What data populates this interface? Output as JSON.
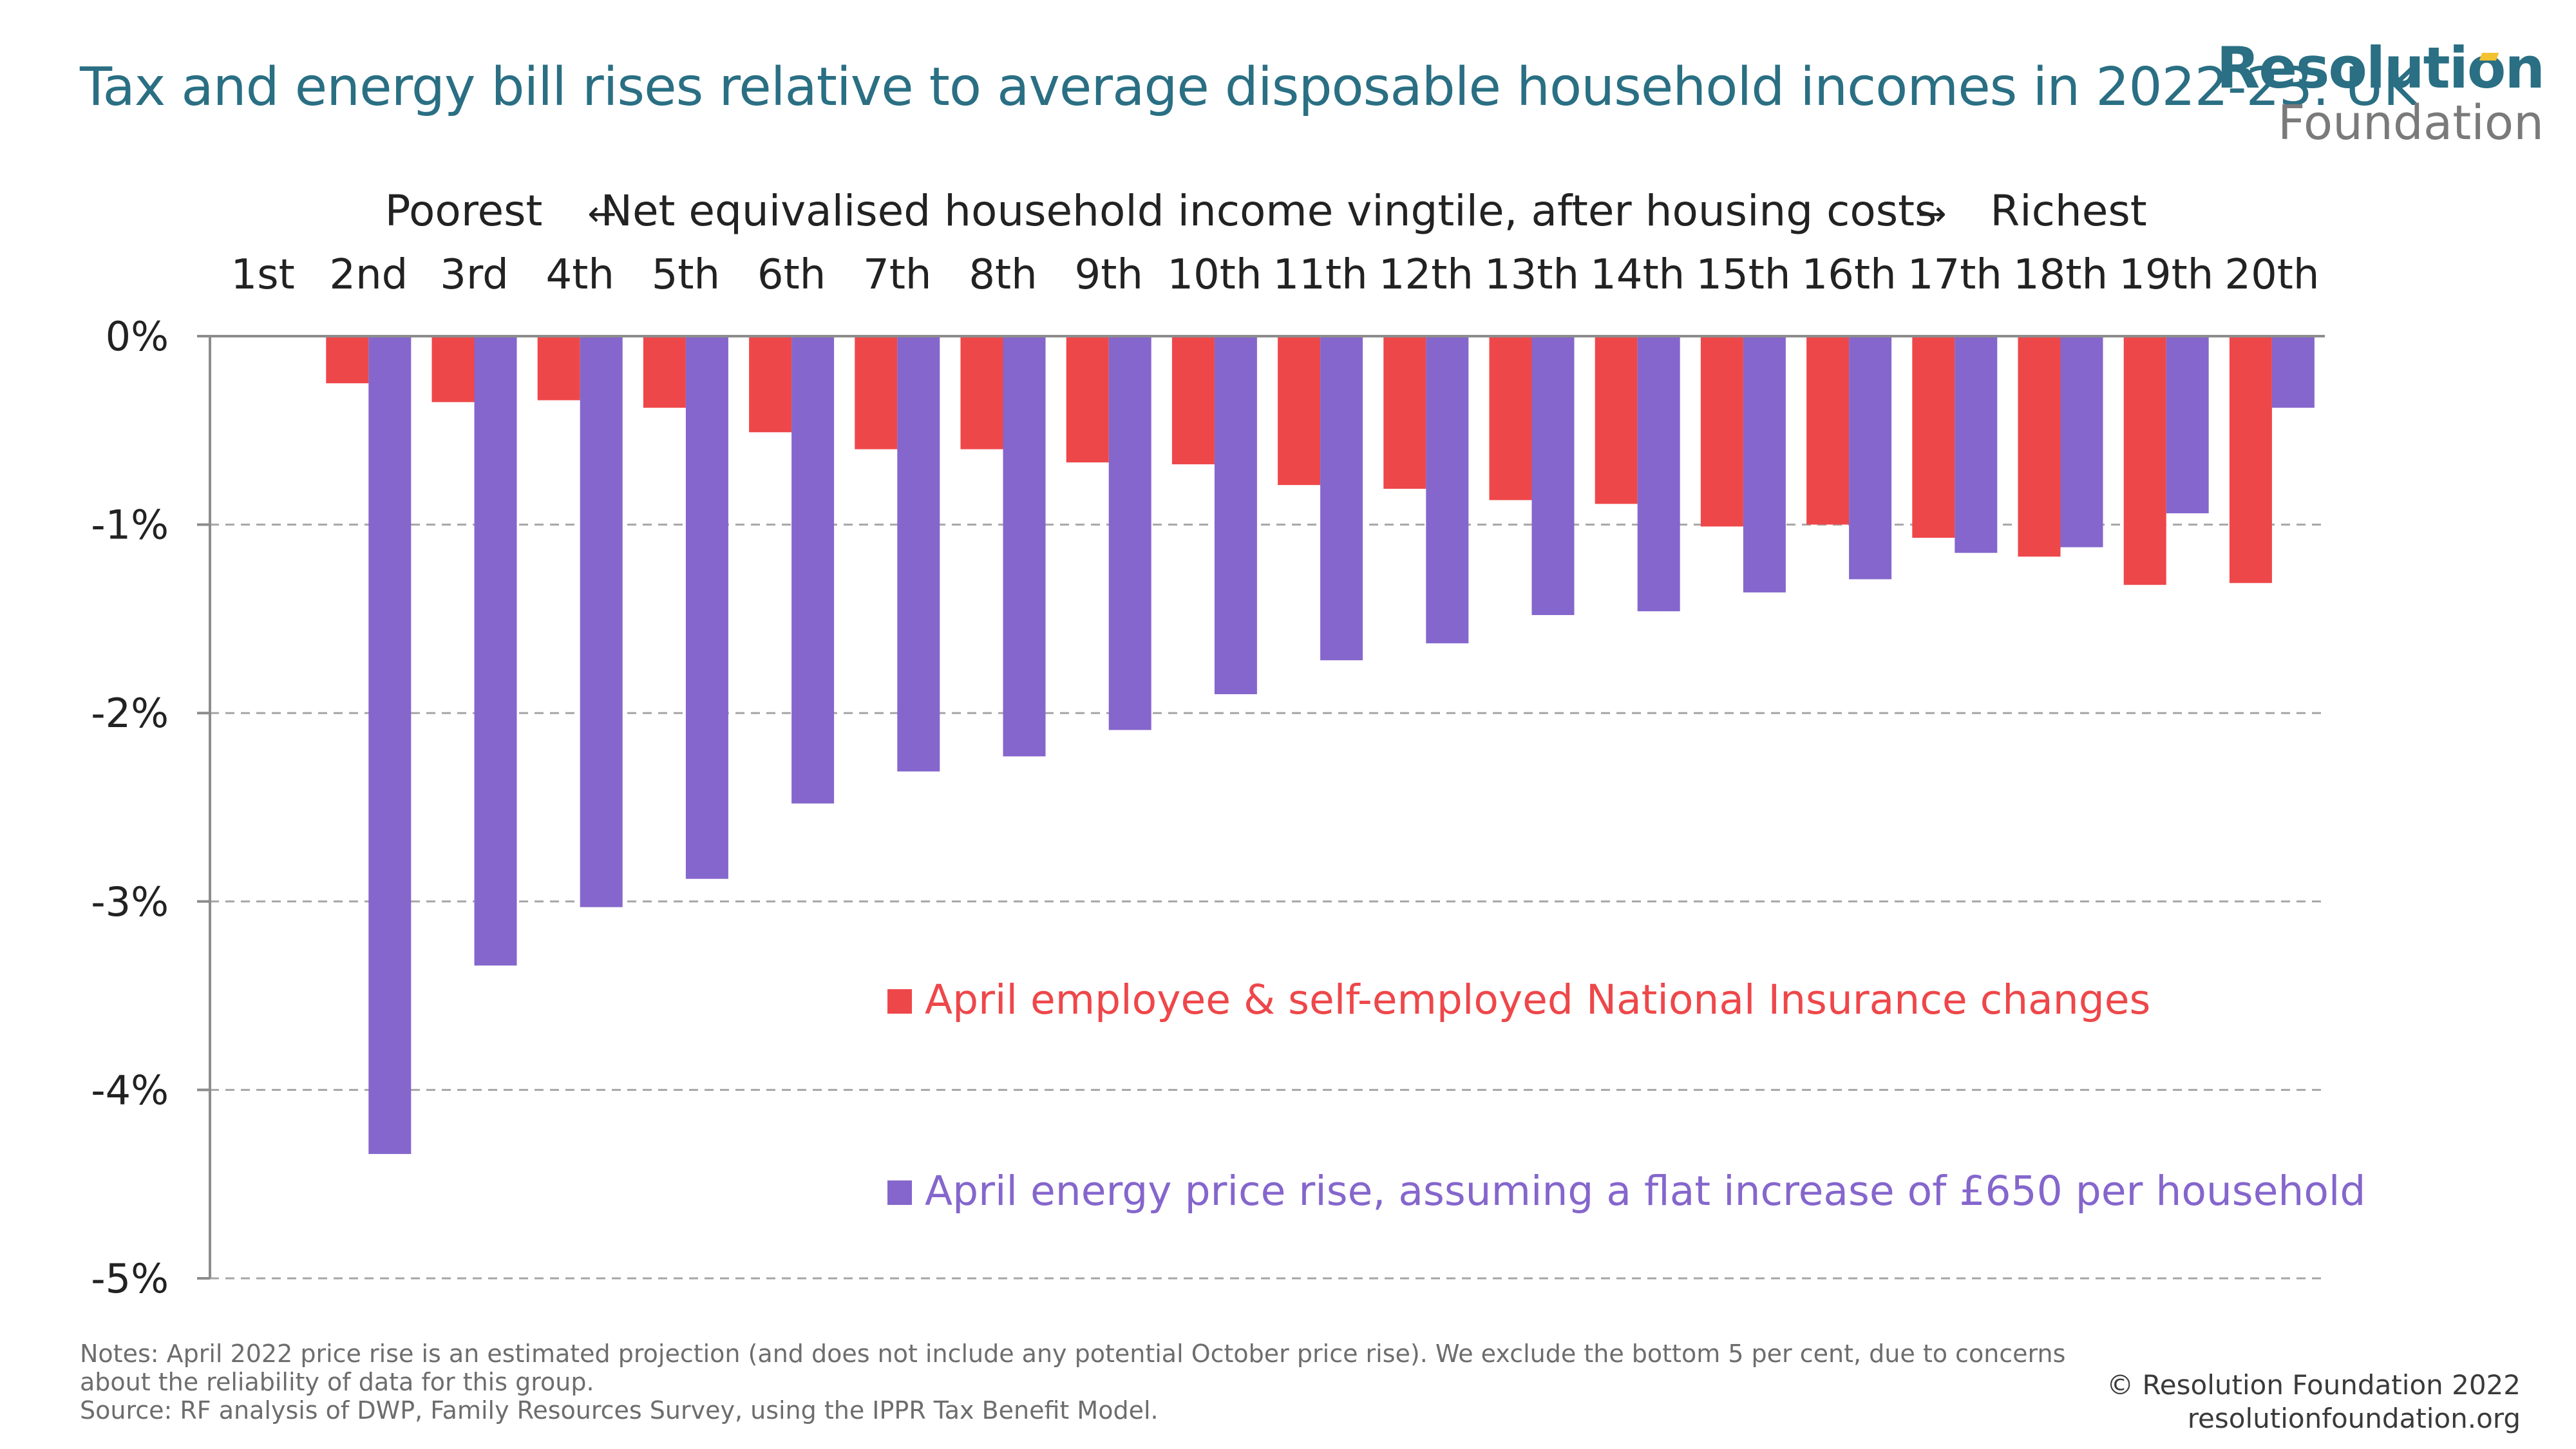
{
  "title": "Tax and energy bill rises relative to average disposable household incomes in 2022-23: UK",
  "logo": {
    "line1": "Resolution",
    "line2": "Foundation"
  },
  "axis_header": {
    "left": "Poorest",
    "left_arrow": "←",
    "center": "Net equivalised household income vingtile, after housing costs",
    "right_arrow": "→",
    "right": "Richest"
  },
  "colors": {
    "ni": "#ee474a",
    "energy": "#8566cc",
    "title": "#2a6f83",
    "grid": "#a6a6a6"
  },
  "chart_data": {
    "type": "bar",
    "categories": [
      "1st",
      "2nd",
      "3rd",
      "4th",
      "5th",
      "6th",
      "7th",
      "8th",
      "9th",
      "10th",
      "11th",
      "12th",
      "13th",
      "14th",
      "15th",
      "16th",
      "17th",
      "18th",
      "19th",
      "20th"
    ],
    "series": [
      {
        "name": "April employee & self-employed National Insurance changes",
        "values": [
          null,
          -0.25,
          -0.35,
          -0.34,
          -0.38,
          -0.51,
          -0.6,
          -0.6,
          -0.67,
          -0.68,
          -0.79,
          -0.81,
          -0.87,
          -0.89,
          -1.01,
          -1.0,
          -1.07,
          -1.17,
          -1.32,
          -1.31
        ]
      },
      {
        "name": "April energy price rise, assuming a flat increase of £650 per household",
        "values": [
          null,
          -4.34,
          -3.34,
          -3.03,
          -2.88,
          -2.48,
          -2.31,
          -2.23,
          -2.09,
          -1.9,
          -1.72,
          -1.63,
          -1.48,
          -1.46,
          -1.36,
          -1.29,
          -1.15,
          -1.12,
          -0.94,
          -0.38
        ]
      }
    ],
    "yticks": [
      "0%",
      "-1%",
      "-2%",
      "-3%",
      "-4%",
      "-5%"
    ],
    "ylim": [
      -5,
      0
    ],
    "grid": true
  },
  "notes": [
    "Notes: April 2022 price rise is an estimated projection (and does not include any potential October price rise). We exclude the bottom 5 per cent, due to concerns about the reliability of data for this group.",
    "Source: RF analysis of DWP, Family Resources Survey, using the IPPR Tax Benefit Model."
  ],
  "copyright": {
    "line1": "© Resolution Foundation 2022",
    "line2": "resolutionfoundation.org"
  }
}
